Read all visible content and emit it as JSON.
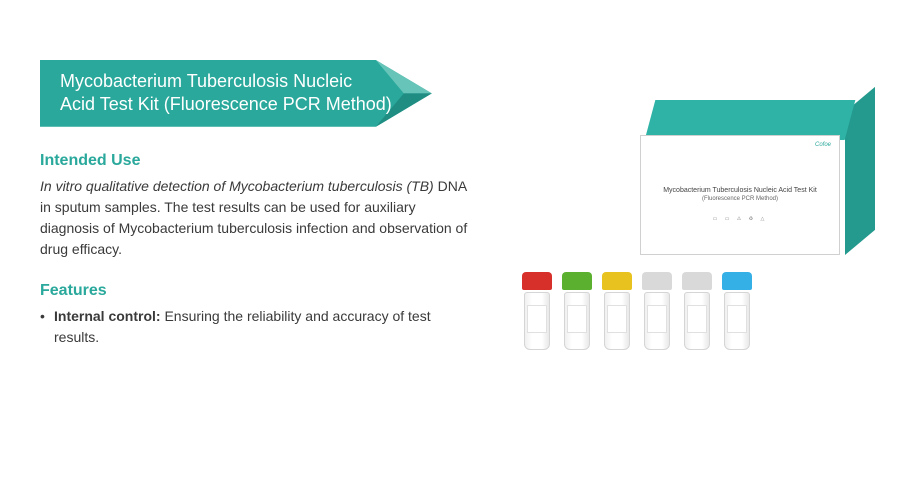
{
  "colors": {
    "accent": "#29a89b",
    "accent_dark": "#1f8d82",
    "accent_light": "#67c4b8",
    "heading": "#29a89b",
    "body_text": "#3a3a3a",
    "white": "#ffffff"
  },
  "banner": {
    "line1": "Mycobacterium Tuberculosis Nucleic",
    "line2": "Acid Test Kit (Fluorescence PCR Method)"
  },
  "intended_use": {
    "heading": "Intended Use",
    "lead_italic": "In vitro qualitative detection of Mycobacterium tuberculosis (TB)",
    "body_rest": "DNA in sputum samples. The test results can be used for auxiliary diagnosis of Mycobacterium tuberculosis infection and observation of drug efficacy."
  },
  "features": {
    "heading": "Features",
    "items": [
      {
        "label": "Internal control:",
        "text": " Ensuring the reliability and accuracy of test results."
      }
    ]
  },
  "product_image": {
    "box": {
      "lid_color": "#2fb3a6",
      "side_color": "#24998d",
      "logo": "Cofoe",
      "title_line": "Mycobacterium Tuberculosis Nucleic Acid Test Kit",
      "subtitle_line": "(Fluorescence PCR Method)",
      "icon_row": "▭ ▭ ⚠ ♻ △"
    },
    "vials": [
      {
        "cap_color": "#d7302a"
      },
      {
        "cap_color": "#5cb030"
      },
      {
        "cap_color": "#e8c21e"
      },
      {
        "cap_color": "#d9d9d9"
      },
      {
        "cap_color": "#d9d9d9"
      },
      {
        "cap_color": "#35b0e6"
      }
    ]
  }
}
